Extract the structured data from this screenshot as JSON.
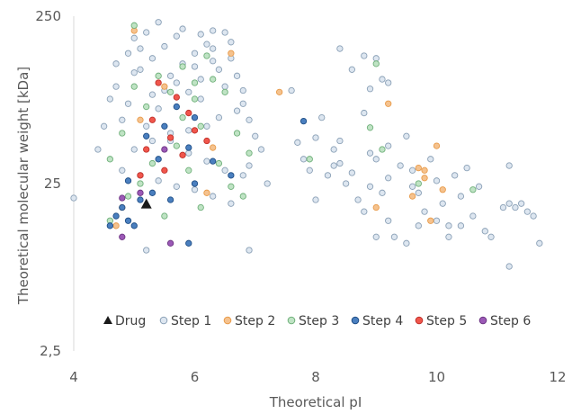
{
  "chart_data": {
    "type": "scatter",
    "xlabel": "Theoretical pI",
    "ylabel": "Theoretical molecular weight [kDa]",
    "xlim": [
      4,
      12
    ],
    "ylim": [
      2.5,
      250
    ],
    "y_scale": "log",
    "x_ticks": [
      "4",
      "6",
      "8",
      "10",
      "12"
    ],
    "y_ticks": [
      "2,5",
      "25",
      "250"
    ],
    "grid": false,
    "legend_position": "bottom",
    "series": [
      {
        "name": "Drug",
        "marker": "triangle",
        "color": "#1a1a1a",
        "points": [
          [
            5.2,
            19
          ]
        ]
      },
      {
        "name": "Step 1",
        "marker": "circle",
        "color": "#dde6f0",
        "edge": "#8aa0b6",
        "points": [
          [
            4.0,
            20.5
          ],
          [
            4.4,
            40
          ],
          [
            4.5,
            55
          ],
          [
            4.6,
            80
          ],
          [
            4.7,
            95
          ],
          [
            4.8,
            60
          ],
          [
            4.9,
            150
          ],
          [
            5.0,
            185
          ],
          [
            5.1,
            120
          ],
          [
            5.2,
            200
          ],
          [
            5.3,
            85
          ],
          [
            5.3,
            140
          ],
          [
            5.4,
            70
          ],
          [
            5.5,
            165
          ],
          [
            5.6,
            110
          ],
          [
            5.7,
            190
          ],
          [
            5.8,
            130
          ],
          [
            5.9,
            88
          ],
          [
            6.0,
            150
          ],
          [
            6.1,
            105
          ],
          [
            6.2,
            170
          ],
          [
            6.3,
            205
          ],
          [
            6.4,
            120
          ],
          [
            6.5,
            95
          ],
          [
            6.6,
            140
          ],
          [
            6.7,
            110
          ],
          [
            6.8,
            75
          ],
          [
            6.9,
            60
          ],
          [
            7.0,
            48
          ],
          [
            6.5,
            200
          ],
          [
            5.4,
            230
          ],
          [
            5.8,
            210
          ],
          [
            6.1,
            195
          ],
          [
            6.3,
            160
          ],
          [
            6.6,
            175
          ],
          [
            5.0,
            115
          ],
          [
            4.9,
            75
          ],
          [
            5.2,
            55
          ],
          [
            5.6,
            45
          ],
          [
            5.9,
            38
          ],
          [
            6.2,
            34
          ],
          [
            6.5,
            30
          ],
          [
            6.8,
            28
          ],
          [
            4.8,
            30
          ],
          [
            5.1,
            28
          ],
          [
            5.4,
            26
          ],
          [
            5.7,
            24
          ],
          [
            6.0,
            23
          ],
          [
            6.3,
            21
          ],
          [
            6.6,
            19
          ],
          [
            5.0,
            40
          ],
          [
            5.3,
            45
          ],
          [
            5.6,
            50
          ],
          [
            5.9,
            52
          ],
          [
            6.2,
            55
          ],
          [
            6.4,
            62
          ],
          [
            6.7,
            68
          ],
          [
            7.1,
            40
          ],
          [
            7.2,
            25
          ],
          [
            6.9,
            32
          ],
          [
            5.2,
            10
          ],
          [
            6.9,
            10
          ],
          [
            5.5,
            90
          ],
          [
            5.7,
            100
          ],
          [
            6.0,
            125
          ],
          [
            6.3,
            135
          ],
          [
            6.8,
            90
          ],
          [
            5.1,
            160
          ],
          [
            4.7,
            130
          ],
          [
            6.1,
            80
          ],
          [
            7.6,
            90
          ],
          [
            7.8,
            35
          ],
          [
            7.9,
            30
          ],
          [
            8.1,
            62
          ],
          [
            8.0,
            47
          ],
          [
            8.4,
            160
          ],
          [
            8.6,
            120
          ],
          [
            8.8,
            145
          ],
          [
            8.9,
            92
          ],
          [
            9.0,
            140
          ],
          [
            9.1,
            105
          ],
          [
            8.3,
            40
          ],
          [
            8.5,
            25
          ],
          [
            8.7,
            20
          ],
          [
            8.9,
            38
          ],
          [
            9.1,
            22
          ],
          [
            9.2,
            15
          ],
          [
            8.6,
            29
          ],
          [
            8.8,
            17
          ],
          [
            9.0,
            12
          ],
          [
            8.0,
            20
          ],
          [
            8.2,
            28
          ],
          [
            8.4,
            33
          ],
          [
            8.9,
            24
          ],
          [
            9.2,
            42
          ],
          [
            9.4,
            32
          ],
          [
            9.5,
            48
          ],
          [
            9.6,
            30
          ],
          [
            9.7,
            22
          ],
          [
            9.8,
            17
          ],
          [
            9.9,
            35
          ],
          [
            10.0,
            26
          ],
          [
            10.1,
            19
          ],
          [
            10.2,
            14
          ],
          [
            10.3,
            28
          ],
          [
            10.4,
            21
          ],
          [
            10.5,
            31
          ],
          [
            10.6,
            16
          ],
          [
            10.7,
            24
          ],
          [
            10.8,
            13
          ],
          [
            9.3,
            12
          ],
          [
            9.5,
            11
          ],
          [
            9.7,
            14
          ],
          [
            10.0,
            15
          ],
          [
            10.2,
            12
          ],
          [
            10.9,
            12
          ],
          [
            11.1,
            18
          ],
          [
            11.2,
            19
          ],
          [
            11.3,
            18
          ],
          [
            11.4,
            19
          ],
          [
            11.5,
            17
          ],
          [
            11.6,
            16
          ],
          [
            11.7,
            11
          ],
          [
            11.2,
            32
          ],
          [
            11.2,
            8
          ],
          [
            10.4,
            14
          ],
          [
            9.2,
            27
          ],
          [
            8.8,
            66
          ],
          [
            9.2,
            100
          ],
          [
            9.6,
            24
          ],
          [
            8.4,
            45
          ],
          [
            7.7,
            44
          ],
          [
            8.3,
            32
          ],
          [
            9.0,
            35
          ]
        ]
      },
      {
        "name": "Step 2",
        "marker": "circle",
        "color": "#f5c28e",
        "edge": "#e89b4a",
        "points": [
          [
            5.0,
            205
          ],
          [
            4.8,
            18
          ],
          [
            4.7,
            14
          ],
          [
            5.1,
            60
          ],
          [
            5.5,
            95
          ],
          [
            6.2,
            22
          ],
          [
            6.6,
            150
          ],
          [
            7.4,
            88
          ],
          [
            9.0,
            18
          ],
          [
            9.2,
            75
          ],
          [
            9.8,
            27
          ],
          [
            9.9,
            15
          ],
          [
            10.0,
            42
          ],
          [
            10.1,
            23
          ],
          [
            9.6,
            21
          ],
          [
            9.7,
            31
          ],
          [
            9.8,
            30
          ],
          [
            6.3,
            41
          ]
        ]
      },
      {
        "name": "Step 3",
        "marker": "circle",
        "color": "#bfe3c4",
        "edge": "#6fb07a",
        "points": [
          [
            4.6,
            35
          ],
          [
            4.8,
            50
          ],
          [
            5.0,
            220
          ],
          [
            5.2,
            72
          ],
          [
            5.4,
            110
          ],
          [
            5.6,
            88
          ],
          [
            5.8,
            62
          ],
          [
            6.0,
            80
          ],
          [
            6.3,
            105
          ],
          [
            6.5,
            88
          ],
          [
            6.7,
            50
          ],
          [
            6.9,
            38
          ],
          [
            5.7,
            42
          ],
          [
            5.9,
            30
          ],
          [
            6.1,
            55
          ],
          [
            6.4,
            33
          ],
          [
            6.6,
            24
          ],
          [
            6.8,
            21
          ],
          [
            5.3,
            33
          ],
          [
            5.1,
            25
          ],
          [
            4.9,
            21
          ],
          [
            4.6,
            15
          ],
          [
            5.5,
            16
          ],
          [
            6.1,
            18
          ],
          [
            8.9,
            54
          ],
          [
            9.1,
            40
          ],
          [
            9.0,
            130
          ],
          [
            10.6,
            23
          ],
          [
            7.9,
            35
          ],
          [
            9.7,
            25
          ],
          [
            5.0,
            95
          ],
          [
            5.8,
            125
          ],
          [
            6.2,
            145
          ],
          [
            6.0,
            100
          ]
        ]
      },
      {
        "name": "Step 4",
        "marker": "circle",
        "color": "#4a7fbf",
        "edge": "#1f4e86",
        "points": [
          [
            4.6,
            14
          ],
          [
            4.7,
            16
          ],
          [
            4.8,
            18
          ],
          [
            4.9,
            15
          ],
          [
            5.0,
            14
          ],
          [
            5.1,
            20
          ],
          [
            5.3,
            22
          ],
          [
            5.6,
            20
          ],
          [
            5.9,
            11
          ],
          [
            6.0,
            25
          ],
          [
            5.2,
            48
          ],
          [
            5.5,
            55
          ],
          [
            5.7,
            72
          ],
          [
            6.0,
            62
          ],
          [
            6.3,
            34
          ],
          [
            6.6,
            28
          ],
          [
            5.9,
            41
          ],
          [
            5.4,
            35
          ],
          [
            7.8,
            59
          ],
          [
            4.9,
            26
          ]
        ]
      },
      {
        "name": "Step 5",
        "marker": "circle",
        "color": "#f0564c",
        "edge": "#c0302a",
        "points": [
          [
            5.4,
            100
          ],
          [
            5.3,
            60
          ],
          [
            5.6,
            47
          ],
          [
            5.8,
            37
          ],
          [
            5.1,
            28
          ],
          [
            5.7,
            82
          ],
          [
            5.2,
            40
          ],
          [
            6.0,
            52
          ],
          [
            6.2,
            45
          ],
          [
            5.5,
            30
          ],
          [
            5.9,
            66
          ]
        ]
      },
      {
        "name": "Step 6",
        "marker": "circle",
        "color": "#9b59b6",
        "edge": "#6c3483",
        "points": [
          [
            4.8,
            20.5
          ],
          [
            4.8,
            12
          ],
          [
            5.1,
            22
          ],
          [
            5.6,
            11
          ],
          [
            5.5,
            40
          ]
        ]
      }
    ]
  }
}
